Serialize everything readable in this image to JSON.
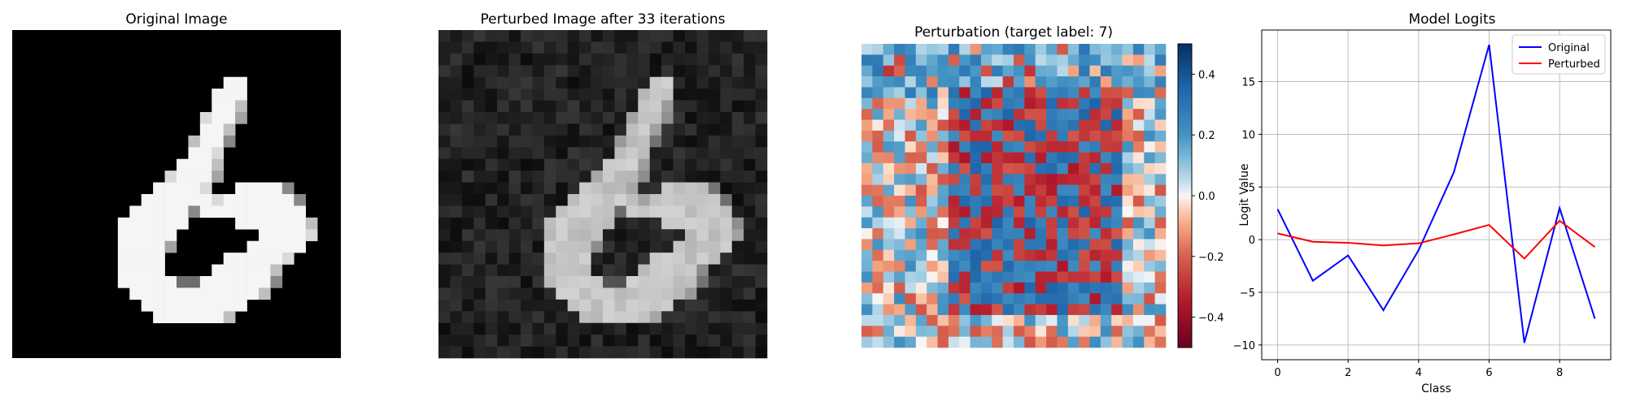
{
  "panels": {
    "original_title": "Original Image",
    "perturbed_title": "Perturbed Image after 33 iterations",
    "perturbation_title": "Perturbation (target label: 7)",
    "logits_title": "Model Logits"
  },
  "colors": {
    "original_line": "#0000ff",
    "perturbed_line": "#ff0000",
    "cmap_neg": "#67001f",
    "cmap_mid": "#f7f7f7",
    "cmap_pos": "#053061"
  },
  "chart_data": [
    {
      "type": "heatmap",
      "title": "Original Image",
      "colormap": "gray",
      "note_grid": "28x28 grayscale digit",
      "rows": [
        "0000000000000000000000000000",
        "0000000000000000000000000000",
        "0000000000000000000000000000",
        "0000000000000000000000000000",
        "0000000000000000009900000000",
        "0000000000000000099900000000",
        "0000000000000000099700000000",
        "0000000000000000899600000000",
        "0000000000000000997000000000",
        "0000000000000007995000000000",
        "0000000000000009980000000000",
        "0000000000000099970000000000",
        "0000000000000899960000000000",
        "0000000000009999800999950000",
        "0000000000099999989999995000",
        "0000000000999995999999999000",
        "0000000009999990000999999700",
        "0000000009999900000009999800",
        "0000000009999600000099999000",
        "0000000009999000009999980000",
        "0000000009999000099999700000",
        "0000000009999944999999500000",
        "0000000000999999999997000000",
        "0000000000099999999900000000",
        "0000000000009999997000000000",
        "0000000000000000000000000000",
        "0000000000000000000000000000",
        "0000000000000000000000000000"
      ]
    },
    {
      "type": "heatmap",
      "title": "Perturbed Image after 33 iterations",
      "colormap": "gray"
    },
    {
      "type": "heatmap",
      "title": "Perturbation (target label: 7)",
      "colormap": "RdBu",
      "colorbar_ticks": [
        "0.4",
        "0.2",
        "0.0",
        "−0.2",
        "−0.4"
      ],
      "colorbar_values": [
        0.4,
        0.2,
        0.0,
        -0.2,
        -0.4
      ],
      "vlim": [
        -0.5,
        0.5
      ]
    },
    {
      "type": "line",
      "title": "Model Logits",
      "xlabel": "Class",
      "ylabel": "Logit Value",
      "x": [
        0,
        1,
        2,
        3,
        4,
        5,
        6,
        7,
        8,
        9
      ],
      "xticks": [
        "0",
        "2",
        "4",
        "6",
        "8"
      ],
      "xtick_values": [
        0,
        2,
        4,
        6,
        8
      ],
      "yticks": [
        "15",
        "10",
        "5",
        "0",
        "−5",
        "−10"
      ],
      "ytick_values": [
        15,
        10,
        5,
        0,
        -5,
        -10
      ],
      "xlim": [
        -0.45,
        9.45
      ],
      "ylim": [
        -11.4,
        19.9
      ],
      "grid": true,
      "legend_position": "top-right",
      "series": [
        {
          "name": "Original",
          "values": [
            2.9,
            -3.9,
            -1.5,
            -6.7,
            -1.0,
            6.4,
            18.5,
            -9.8,
            3.0,
            -7.5
          ]
        },
        {
          "name": "Perturbed",
          "values": [
            0.6,
            -0.2,
            -0.3,
            -0.55,
            -0.35,
            0.5,
            1.4,
            -1.8,
            1.8,
            -0.7
          ]
        }
      ]
    }
  ]
}
